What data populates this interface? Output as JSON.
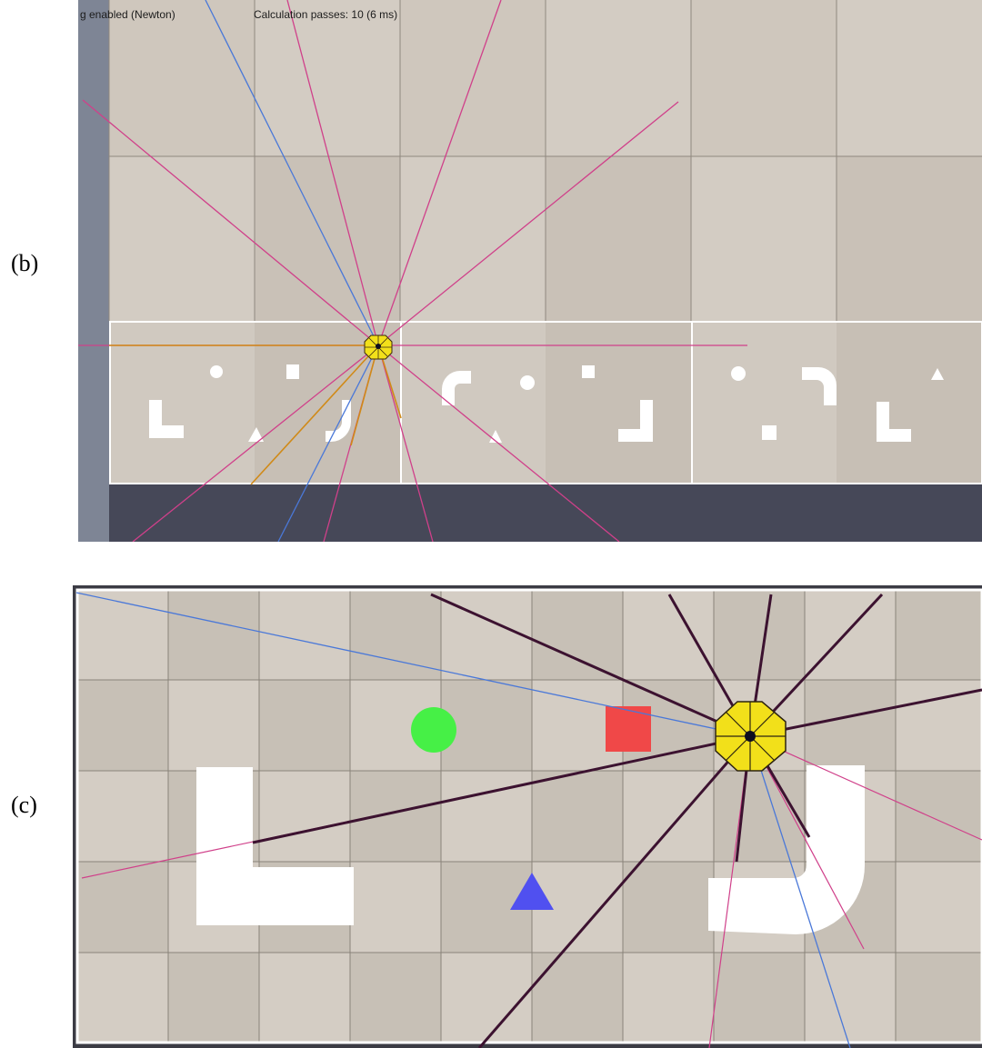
{
  "panels": {
    "b": {
      "label": "(b)"
    },
    "c": {
      "label": "(c)"
    }
  },
  "status_bar": {
    "left_text": "g enabled (Newton)",
    "right_text": "Calculation passes: 10 (6 ms)"
  },
  "colors": {
    "floor_light": "#d6d0c8",
    "floor_dark": "#c9c2b9",
    "ray_pink": "#d0408a",
    "ray_blue": "#4a78d8",
    "ray_orange": "#d08a18",
    "ray_dark": "#3c1230",
    "robot_yellow": "#f2e01a",
    "marker_green": "#46f046",
    "marker_red": "#f04848",
    "marker_blue": "#5050f0",
    "obstacle_white": "#ffffff"
  },
  "objects_c": {
    "marker_circle": "green-circle",
    "marker_square": "red-square",
    "marker_triangle": "blue-triangle",
    "obstacle_left": "l-shape",
    "obstacle_right": "j-shape"
  }
}
